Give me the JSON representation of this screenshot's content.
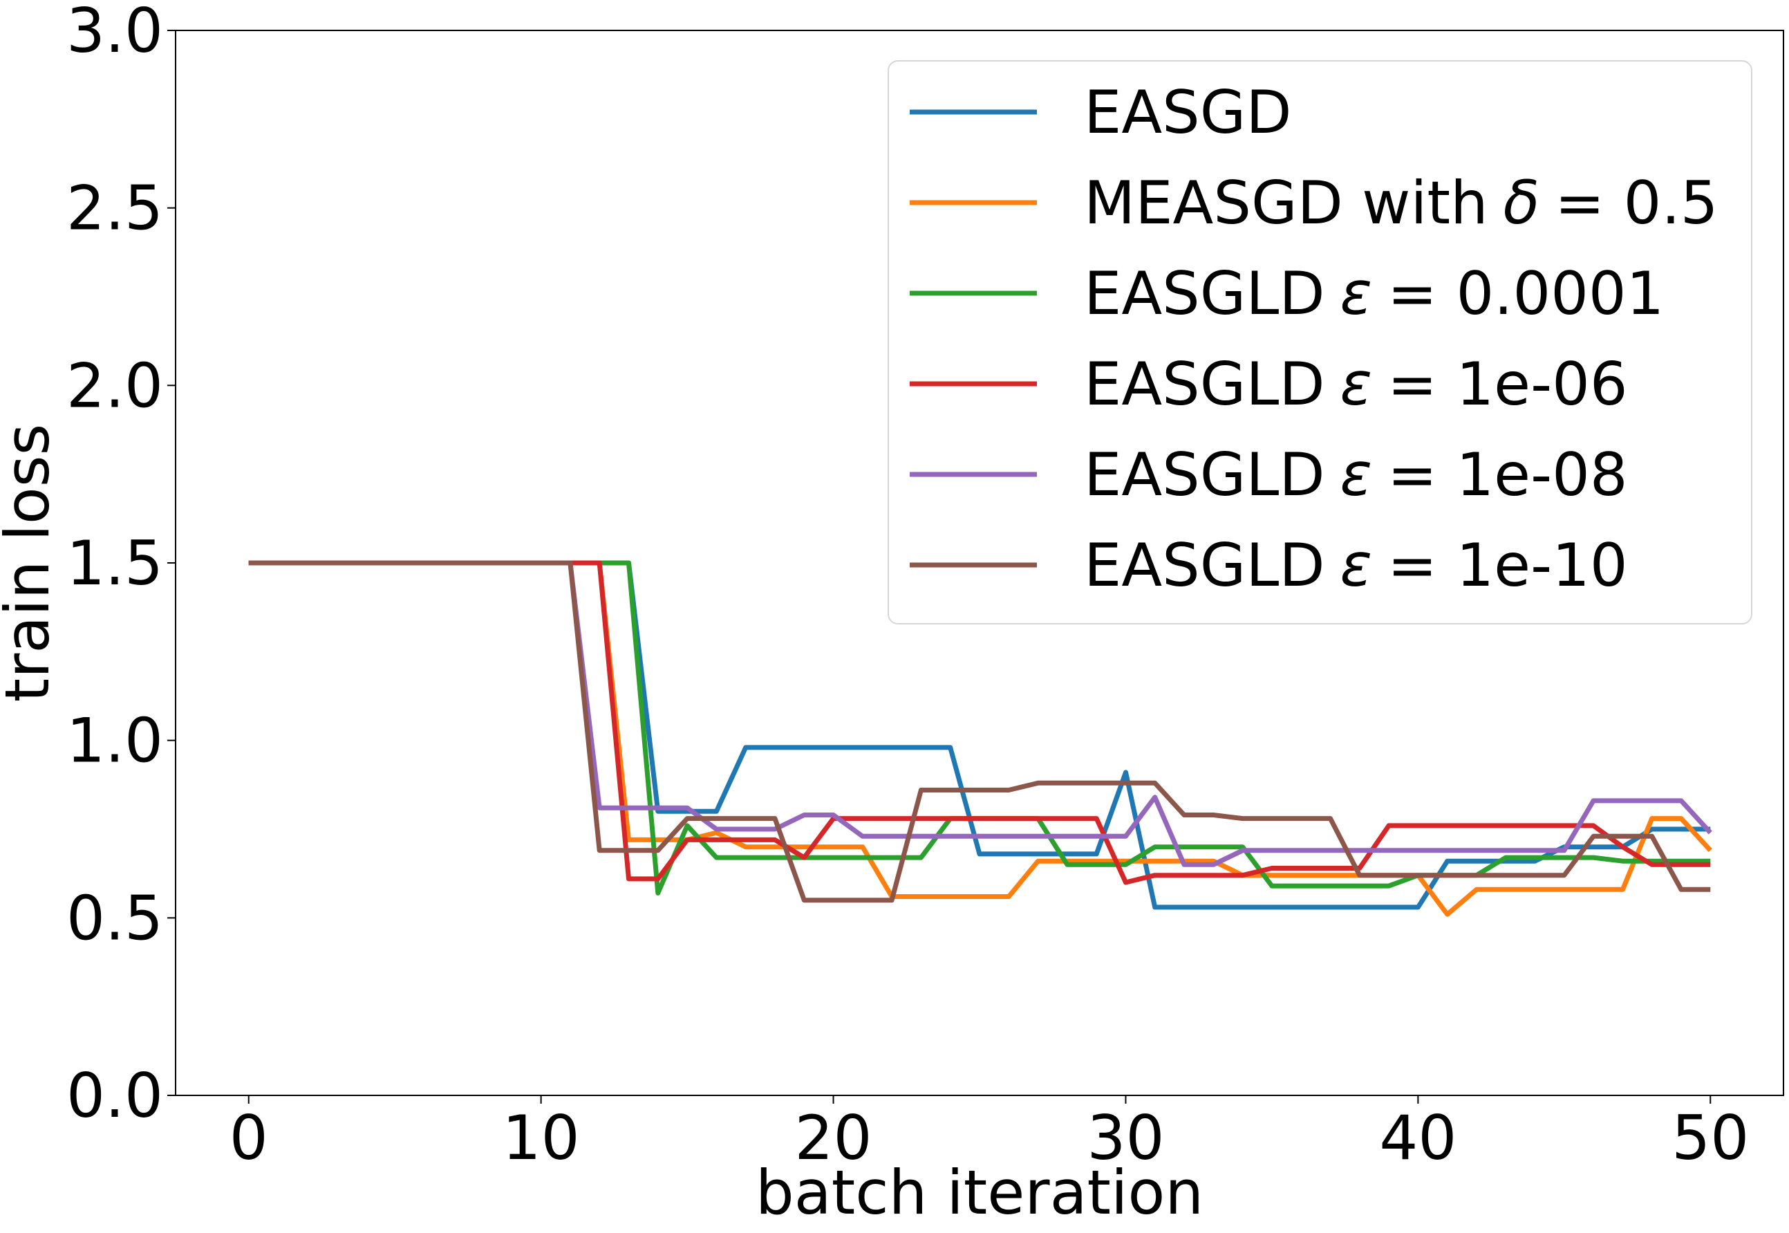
{
  "chart_data": {
    "type": "line",
    "xlabel": "batch iteration",
    "ylabel": "train loss",
    "xlim": [
      -2.5,
      52.5
    ],
    "ylim": [
      0.0,
      3.0
    ],
    "xticks": [
      0,
      10,
      20,
      30,
      40,
      50
    ],
    "yticks": [
      0.0,
      0.5,
      1.0,
      1.5,
      2.0,
      2.5,
      3.0
    ],
    "xtick_labels": [
      "0",
      "10",
      "20",
      "30",
      "40",
      "50"
    ],
    "ytick_labels": [
      "0.0",
      "0.5",
      "1.0",
      "1.5",
      "2.0",
      "2.5",
      "3.0"
    ],
    "grid": false,
    "legend_position": "upper-right",
    "x": [
      0,
      1,
      2,
      3,
      4,
      5,
      6,
      7,
      8,
      9,
      10,
      11,
      12,
      13,
      14,
      15,
      16,
      17,
      18,
      19,
      20,
      21,
      22,
      23,
      24,
      25,
      26,
      27,
      28,
      29,
      30,
      31,
      32,
      33,
      34,
      35,
      36,
      37,
      38,
      39,
      40,
      41,
      42,
      43,
      44,
      45,
      46,
      47,
      48,
      49,
      50
    ],
    "series": [
      {
        "name": "EASGD",
        "label_prefix": "EASGD",
        "label_symbol": "",
        "label_value": "",
        "color": "#1f77b4",
        "values": [
          1.5,
          1.5,
          1.5,
          1.5,
          1.5,
          1.5,
          1.5,
          1.5,
          1.5,
          1.5,
          1.5,
          1.5,
          1.5,
          1.5,
          0.8,
          0.8,
          0.8,
          0.98,
          0.98,
          0.98,
          0.98,
          0.98,
          0.98,
          0.98,
          0.98,
          0.68,
          0.68,
          0.68,
          0.68,
          0.68,
          0.91,
          0.53,
          0.53,
          0.53,
          0.53,
          0.53,
          0.53,
          0.53,
          0.53,
          0.53,
          0.53,
          0.66,
          0.66,
          0.66,
          0.66,
          0.7,
          0.7,
          0.7,
          0.75,
          0.75,
          0.75
        ]
      },
      {
        "name": "MEASGD with δ = 0.5",
        "label_prefix": "MEASGD with",
        "label_symbol": "δ",
        "label_value": "= 0.5",
        "color": "#ff7f0e",
        "values": [
          1.5,
          1.5,
          1.5,
          1.5,
          1.5,
          1.5,
          1.5,
          1.5,
          1.5,
          1.5,
          1.5,
          1.5,
          1.5,
          0.72,
          0.72,
          0.72,
          0.74,
          0.7,
          0.7,
          0.7,
          0.7,
          0.7,
          0.56,
          0.56,
          0.56,
          0.56,
          0.56,
          0.66,
          0.66,
          0.66,
          0.66,
          0.66,
          0.66,
          0.66,
          0.62,
          0.62,
          0.62,
          0.62,
          0.62,
          0.62,
          0.62,
          0.51,
          0.58,
          0.58,
          0.58,
          0.58,
          0.58,
          0.58,
          0.78,
          0.78,
          0.69
        ]
      },
      {
        "name": "EASGLD ε = 0.0001",
        "label_prefix": "EASGLD",
        "label_symbol": "ε",
        "label_value": "= 0.0001",
        "color": "#2ca02c",
        "values": [
          1.5,
          1.5,
          1.5,
          1.5,
          1.5,
          1.5,
          1.5,
          1.5,
          1.5,
          1.5,
          1.5,
          1.5,
          1.5,
          1.5,
          0.57,
          0.76,
          0.67,
          0.67,
          0.67,
          0.67,
          0.67,
          0.67,
          0.67,
          0.67,
          0.78,
          0.78,
          0.78,
          0.78,
          0.65,
          0.65,
          0.65,
          0.7,
          0.7,
          0.7,
          0.7,
          0.59,
          0.59,
          0.59,
          0.59,
          0.59,
          0.62,
          0.62,
          0.62,
          0.67,
          0.67,
          0.67,
          0.67,
          0.66,
          0.66,
          0.66,
          0.66
        ]
      },
      {
        "name": "EASGLD ε = 1e-06",
        "label_prefix": "EASGLD",
        "label_symbol": "ε",
        "label_value": "= 1e-06",
        "color": "#d62728",
        "values": [
          1.5,
          1.5,
          1.5,
          1.5,
          1.5,
          1.5,
          1.5,
          1.5,
          1.5,
          1.5,
          1.5,
          1.5,
          1.5,
          0.61,
          0.61,
          0.72,
          0.72,
          0.72,
          0.72,
          0.67,
          0.78,
          0.78,
          0.78,
          0.78,
          0.78,
          0.78,
          0.78,
          0.78,
          0.78,
          0.78,
          0.6,
          0.62,
          0.62,
          0.62,
          0.62,
          0.64,
          0.64,
          0.64,
          0.64,
          0.76,
          0.76,
          0.76,
          0.76,
          0.76,
          0.76,
          0.76,
          0.76,
          0.7,
          0.65,
          0.65,
          0.65
        ]
      },
      {
        "name": "EASGLD ε = 1e-08",
        "label_prefix": "EASGLD",
        "label_symbol": "ε",
        "label_value": "= 1e-08",
        "color": "#9467bd",
        "values": [
          1.5,
          1.5,
          1.5,
          1.5,
          1.5,
          1.5,
          1.5,
          1.5,
          1.5,
          1.5,
          1.5,
          1.5,
          0.81,
          0.81,
          0.81,
          0.81,
          0.75,
          0.75,
          0.75,
          0.79,
          0.79,
          0.73,
          0.73,
          0.73,
          0.73,
          0.73,
          0.73,
          0.73,
          0.73,
          0.73,
          0.73,
          0.84,
          0.65,
          0.65,
          0.69,
          0.69,
          0.69,
          0.69,
          0.69,
          0.69,
          0.69,
          0.69,
          0.69,
          0.69,
          0.69,
          0.69,
          0.83,
          0.83,
          0.83,
          0.83,
          0.74
        ]
      },
      {
        "name": "EASGLD ε = 1e-10",
        "label_prefix": "EASGLD",
        "label_symbol": "ε",
        "label_value": "= 1e-10",
        "color": "#8c564b",
        "values": [
          1.5,
          1.5,
          1.5,
          1.5,
          1.5,
          1.5,
          1.5,
          1.5,
          1.5,
          1.5,
          1.5,
          1.5,
          0.69,
          0.69,
          0.69,
          0.78,
          0.78,
          0.78,
          0.78,
          0.55,
          0.55,
          0.55,
          0.55,
          0.86,
          0.86,
          0.86,
          0.86,
          0.88,
          0.88,
          0.88,
          0.88,
          0.88,
          0.79,
          0.79,
          0.78,
          0.78,
          0.78,
          0.78,
          0.62,
          0.62,
          0.62,
          0.62,
          0.62,
          0.62,
          0.62,
          0.62,
          0.73,
          0.73,
          0.73,
          0.58,
          0.58
        ]
      }
    ]
  }
}
